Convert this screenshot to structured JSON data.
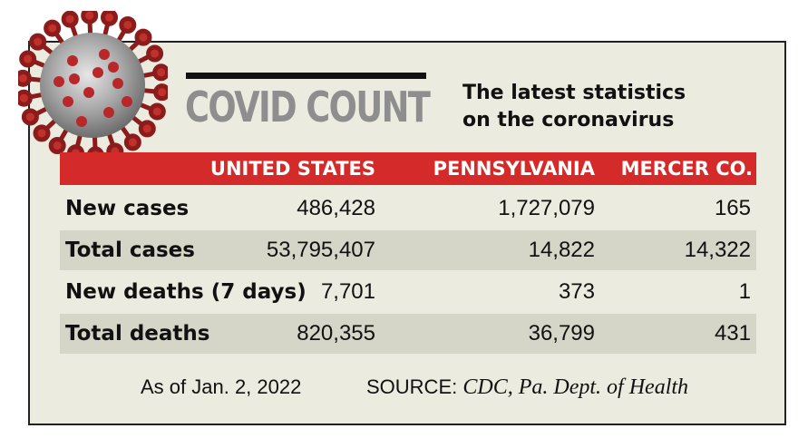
{
  "header": {
    "title": "COVID COUNT",
    "subtitle_line1": "The latest statistics",
    "subtitle_line2": "on the coronavirus"
  },
  "icons": {
    "virus": "coronavirus-icon"
  },
  "colors": {
    "accent": "#d42a2a",
    "panel": "#ecebe0",
    "shade": "#d6d6c8",
    "title": "#8e8e8e"
  },
  "table": {
    "columns": [
      "UNITED STATES",
      "PENNSYLVANIA",
      "MERCER CO."
    ],
    "rows": [
      {
        "label": "New cases",
        "values": [
          "486,428",
          "1,727,079",
          "165"
        ]
      },
      {
        "label": "Total cases",
        "values": [
          "53,795,407",
          "14,822",
          "14,322"
        ]
      },
      {
        "label": "New deaths (7 days)",
        "values": [
          "7,701",
          "373",
          "1"
        ]
      },
      {
        "label": "Total deaths",
        "values": [
          "820,355",
          "36,799",
          "431"
        ]
      }
    ]
  },
  "footer": {
    "as_of": "As of Jan. 2, 2022",
    "source_label": "SOURCE:",
    "source_value": "CDC, Pa. Dept. of Health"
  }
}
